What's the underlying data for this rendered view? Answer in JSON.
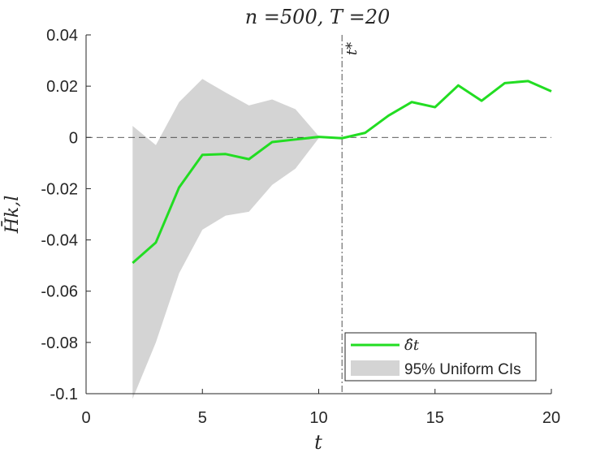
{
  "chart_data": {
    "type": "line",
    "title": "n =500, T =20",
    "xlabel": "t",
    "ylabel": "H̄k,l",
    "xlim": [
      0,
      20
    ],
    "ylim": [
      -0.1,
      0.04
    ],
    "xticks": [
      0,
      5,
      10,
      15,
      20
    ],
    "xtick_labels": [
      "0",
      "5",
      "10",
      "15",
      "20"
    ],
    "yticks": [
      0.04,
      0.02,
      0,
      -0.02,
      -0.04,
      -0.06,
      -0.08,
      -0.1
    ],
    "ytick_labels": [
      "0.04",
      "0.02",
      "0",
      "-0.02",
      "-0.04",
      "-0.06",
      "-0.08",
      "-0.1"
    ],
    "vline": {
      "x": 11,
      "label": "t*"
    },
    "hline": {
      "y": 0
    },
    "series": [
      {
        "name": "δ̂t",
        "color": "#22dd22",
        "x": [
          2,
          3,
          4,
          5,
          6,
          7,
          8,
          9,
          10,
          11,
          12,
          13,
          14,
          15,
          16,
          17,
          18,
          19,
          20
        ],
        "y": [
          -0.049,
          -0.041,
          -0.0195,
          -0.0068,
          -0.0065,
          -0.0085,
          -0.0018,
          -0.0008,
          0.0002,
          -0.0003,
          0.0018,
          0.0085,
          0.0138,
          0.0118,
          0.0203,
          0.0143,
          0.0212,
          0.022,
          0.018
        ]
      }
    ],
    "band": {
      "name": "95% Uniform CIs",
      "color": "#d4d4d4",
      "x": [
        2,
        3,
        4,
        5,
        6,
        7,
        8,
        9,
        10
      ],
      "upper": [
        0.0045,
        -0.003,
        0.0138,
        0.0228,
        0.0175,
        0.0125,
        0.0148,
        0.011,
        0.0005
      ],
      "lower": [
        -0.102,
        -0.08,
        -0.053,
        -0.036,
        -0.0305,
        -0.029,
        -0.0185,
        -0.0122,
        -0.0003
      ]
    },
    "legend": {
      "position": "bottom-right"
    },
    "grid": false
  }
}
